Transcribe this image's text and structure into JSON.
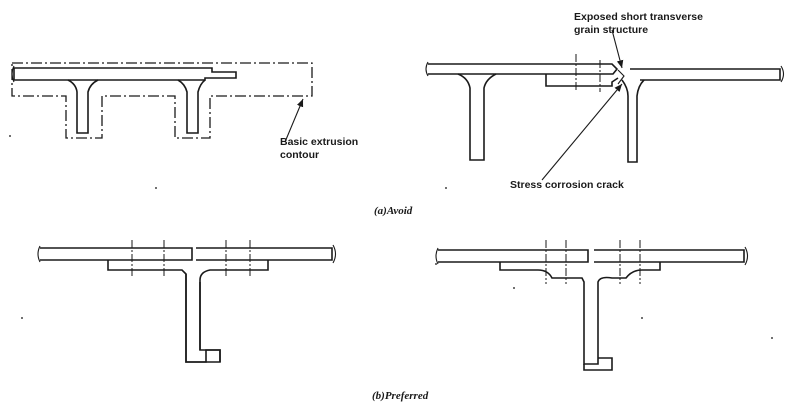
{
  "labels": {
    "exposed_line1": "Exposed short transverse",
    "exposed_line2": "grain structure",
    "basic_line1": "Basic extrusion",
    "basic_line2": "contour",
    "stress_crack": "Stress corrosion crack"
  },
  "captions": {
    "avoid": "(a)Avoid",
    "preferred": "(b)Preferred"
  }
}
